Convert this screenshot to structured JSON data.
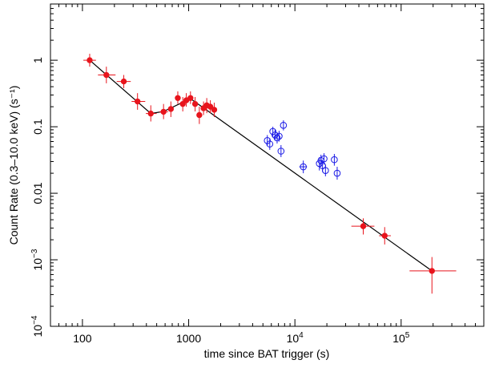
{
  "chart_data": {
    "type": "scatter",
    "title": "",
    "xlabel": "time since BAT trigger (s)",
    "ylabel": "Count Rate (0.3–10.0 keV) (s⁻¹)",
    "xscale": "log",
    "yscale": "log",
    "xlim": [
      50,
      600000
    ],
    "ylim": [
      0.0001,
      7
    ],
    "grid": false,
    "legend": "none",
    "x_ticks": [
      {
        "value": 100,
        "label": "100"
      },
      {
        "value": 1000,
        "label": "1000"
      },
      {
        "value": 10000,
        "base": "10",
        "exp": "4"
      },
      {
        "value": 100000,
        "base": "10",
        "exp": "5"
      }
    ],
    "y_ticks": [
      {
        "value": 1,
        "label": "1"
      },
      {
        "value": 0.1,
        "label": "0.1"
      },
      {
        "value": 0.01,
        "label": "0.01"
      },
      {
        "value": 0.001,
        "base": "10",
        "exp": "−3"
      },
      {
        "value": 0.0001,
        "base": "10",
        "exp": "−4"
      }
    ],
    "series": [
      {
        "color": "#e8141c",
        "marker": "filled-circle",
        "points": [
          {
            "x": 117,
            "y": 1.0,
            "xlo": 102,
            "xhi": 134,
            "ylo": 0.8,
            "yhi": 1.25
          },
          {
            "x": 168,
            "y": 0.6,
            "xlo": 140,
            "xhi": 205,
            "ylo": 0.45,
            "yhi": 0.8
          },
          {
            "x": 245,
            "y": 0.48,
            "xlo": 210,
            "xhi": 285,
            "ylo": 0.38,
            "yhi": 0.6
          },
          {
            "x": 330,
            "y": 0.24,
            "xlo": 290,
            "xhi": 390,
            "ylo": 0.18,
            "yhi": 0.32
          },
          {
            "x": 440,
            "y": 0.158,
            "xlo": 395,
            "xhi": 500,
            "ylo": 0.12,
            "yhi": 0.21
          },
          {
            "x": 580,
            "y": 0.168,
            "xlo": 530,
            "xhi": 640,
            "ylo": 0.13,
            "yhi": 0.22
          },
          {
            "x": 680,
            "y": 0.185,
            "xlo": 640,
            "xhi": 720,
            "ylo": 0.14,
            "yhi": 0.24
          },
          {
            "x": 790,
            "y": 0.27,
            "xlo": 755,
            "xhi": 825,
            "ylo": 0.22,
            "yhi": 0.34
          },
          {
            "x": 880,
            "y": 0.22,
            "xlo": 845,
            "xhi": 915,
            "ylo": 0.17,
            "yhi": 0.28
          },
          {
            "x": 950,
            "y": 0.25,
            "xlo": 915,
            "xhi": 985,
            "ylo": 0.2,
            "yhi": 0.32
          },
          {
            "x": 1040,
            "y": 0.27,
            "xlo": 995,
            "xhi": 1090,
            "ylo": 0.22,
            "yhi": 0.34
          },
          {
            "x": 1150,
            "y": 0.22,
            "xlo": 1100,
            "xhi": 1200,
            "ylo": 0.17,
            "yhi": 0.28
          },
          {
            "x": 1260,
            "y": 0.15,
            "xlo": 1215,
            "xhi": 1305,
            "ylo": 0.11,
            "yhi": 0.2
          },
          {
            "x": 1380,
            "y": 0.19,
            "xlo": 1330,
            "xhi": 1430,
            "ylo": 0.15,
            "yhi": 0.24
          },
          {
            "x": 1480,
            "y": 0.21,
            "xlo": 1430,
            "xhi": 1530,
            "ylo": 0.16,
            "yhi": 0.27
          },
          {
            "x": 1600,
            "y": 0.2,
            "xlo": 1540,
            "xhi": 1660,
            "ylo": 0.16,
            "yhi": 0.25
          },
          {
            "x": 1740,
            "y": 0.18,
            "xlo": 1670,
            "xhi": 1810,
            "ylo": 0.14,
            "yhi": 0.23
          },
          {
            "x": 44000,
            "y": 0.0032,
            "xlo": 34000,
            "xhi": 56000,
            "ylo": 0.0024,
            "yhi": 0.0042
          },
          {
            "x": 70000,
            "y": 0.0023,
            "xlo": 62000,
            "xhi": 80000,
            "ylo": 0.0017,
            "yhi": 0.0031
          },
          {
            "x": 195000,
            "y": 0.00068,
            "xlo": 120000,
            "xhi": 330000,
            "ylo": 0.00031,
            "yhi": 0.0011
          }
        ]
      },
      {
        "color": "#1a1ae6",
        "marker": "open-circle",
        "points": [
          {
            "x": 5500,
            "y": 0.062,
            "ylo": 0.052,
            "yhi": 0.075
          },
          {
            "x": 5800,
            "y": 0.055,
            "ylo": 0.045,
            "yhi": 0.067
          },
          {
            "x": 6200,
            "y": 0.085,
            "ylo": 0.071,
            "yhi": 0.1
          },
          {
            "x": 6500,
            "y": 0.075,
            "ylo": 0.062,
            "yhi": 0.09
          },
          {
            "x": 6800,
            "y": 0.068,
            "ylo": 0.056,
            "yhi": 0.082
          },
          {
            "x": 7100,
            "y": 0.072,
            "ylo": 0.06,
            "yhi": 0.087
          },
          {
            "x": 7400,
            "y": 0.043,
            "ylo": 0.035,
            "yhi": 0.053
          },
          {
            "x": 7800,
            "y": 0.105,
            "ylo": 0.088,
            "yhi": 0.125
          },
          {
            "x": 12000,
            "y": 0.025,
            "xlo": 11000,
            "xhi": 13000,
            "ylo": 0.02,
            "yhi": 0.031
          },
          {
            "x": 17000,
            "y": 0.028,
            "ylo": 0.022,
            "yhi": 0.035
          },
          {
            "x": 17600,
            "y": 0.031,
            "ylo": 0.025,
            "yhi": 0.038
          },
          {
            "x": 18200,
            "y": 0.026,
            "ylo": 0.021,
            "yhi": 0.032
          },
          {
            "x": 18800,
            "y": 0.033,
            "ylo": 0.027,
            "yhi": 0.04
          },
          {
            "x": 19400,
            "y": 0.022,
            "ylo": 0.018,
            "yhi": 0.027
          },
          {
            "x": 23500,
            "y": 0.032,
            "ylo": 0.026,
            "yhi": 0.039
          },
          {
            "x": 25000,
            "y": 0.02,
            "ylo": 0.016,
            "yhi": 0.025
          }
        ]
      }
    ],
    "model_line": {
      "color": "#000000",
      "points": [
        [
          117,
          1.0
        ],
        [
          440,
          0.158
        ],
        [
          580,
          0.17
        ],
        [
          1040,
          0.265
        ],
        [
          195000,
          0.00068
        ]
      ]
    }
  }
}
